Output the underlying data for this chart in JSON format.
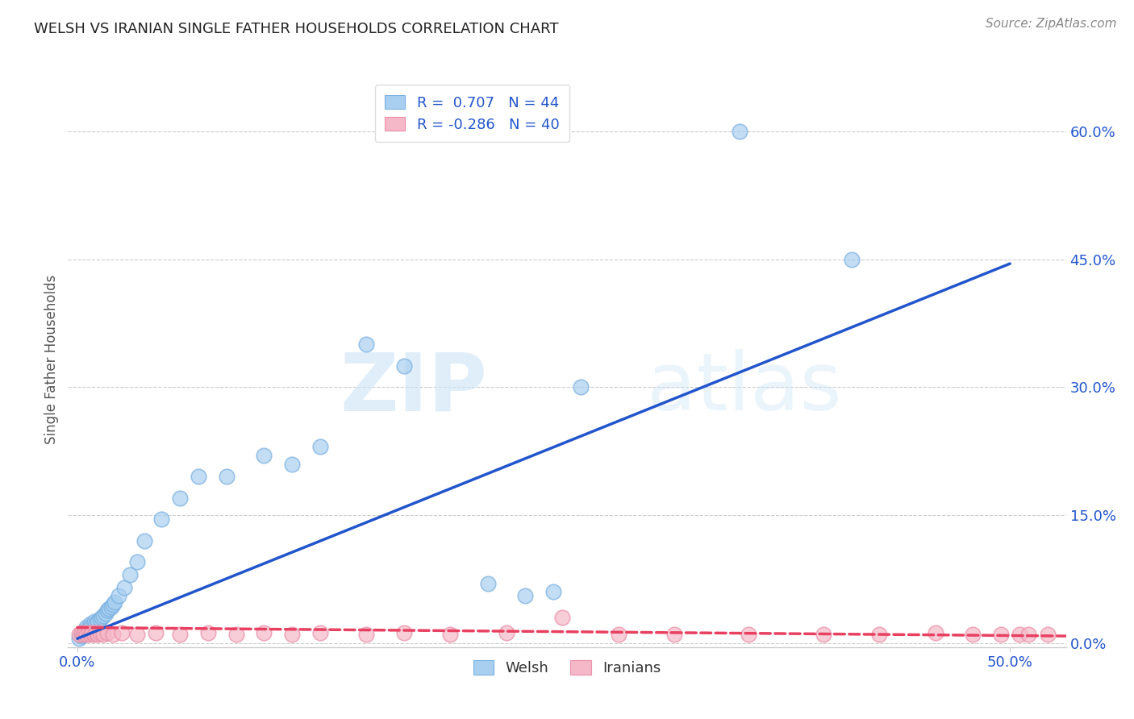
{
  "title": "WELSH VS IRANIAN SINGLE FATHER HOUSEHOLDS CORRELATION CHART",
  "source": "Source: ZipAtlas.com",
  "ylabel": "Single Father Households",
  "ytick_labels": [
    "0.0%",
    "15.0%",
    "30.0%",
    "45.0%",
    "60.0%"
  ],
  "ytick_values": [
    0.0,
    0.15,
    0.3,
    0.45,
    0.6
  ],
  "xtick_labels": [
    "0.0%",
    "50.0%"
  ],
  "xtick_values": [
    0.0,
    0.5
  ],
  "xlim": [
    -0.005,
    0.53
  ],
  "ylim": [
    -0.005,
    0.67
  ],
  "welsh_color": "#a8cff0",
  "welsh_edge_color": "#7ab0e0",
  "welsh_line_color": "#2255cc",
  "iranian_color": "#f5b8c8",
  "iranian_edge_color": "#e890a8",
  "iranian_line_color": "#e84060",
  "legend_welsh_label": "Welsh",
  "legend_iranian_label": "Iranians",
  "welsh_R": "0.707",
  "welsh_N": "44",
  "iranian_R": "-0.286",
  "iranian_N": "40",
  "watermark_zip": "ZIP",
  "watermark_atlas": "atlas",
  "welsh_x": [
    0.001,
    0.002,
    0.003,
    0.003,
    0.004,
    0.004,
    0.005,
    0.005,
    0.006,
    0.007,
    0.007,
    0.008,
    0.009,
    0.01,
    0.011,
    0.012,
    0.013,
    0.014,
    0.015,
    0.016,
    0.017,
    0.018,
    0.019,
    0.02,
    0.022,
    0.025,
    0.028,
    0.032,
    0.036,
    0.045,
    0.055,
    0.065,
    0.08,
    0.1,
    0.115,
    0.13,
    0.155,
    0.175,
    0.22,
    0.24,
    0.255,
    0.27,
    0.355,
    0.415
  ],
  "welsh_y": [
    0.005,
    0.008,
    0.01,
    0.012,
    0.01,
    0.015,
    0.012,
    0.018,
    0.015,
    0.018,
    0.022,
    0.02,
    0.025,
    0.022,
    0.025,
    0.028,
    0.03,
    0.032,
    0.035,
    0.038,
    0.04,
    0.042,
    0.045,
    0.048,
    0.055,
    0.065,
    0.08,
    0.095,
    0.12,
    0.145,
    0.17,
    0.195,
    0.195,
    0.22,
    0.21,
    0.23,
    0.35,
    0.325,
    0.07,
    0.055,
    0.06,
    0.3,
    0.6,
    0.45
  ],
  "iranian_x": [
    0.001,
    0.002,
    0.003,
    0.004,
    0.005,
    0.006,
    0.007,
    0.008,
    0.009,
    0.01,
    0.011,
    0.012,
    0.014,
    0.016,
    0.019,
    0.024,
    0.032,
    0.042,
    0.055,
    0.07,
    0.085,
    0.1,
    0.115,
    0.13,
    0.155,
    0.175,
    0.2,
    0.23,
    0.26,
    0.29,
    0.32,
    0.36,
    0.4,
    0.43,
    0.46,
    0.48,
    0.495,
    0.505,
    0.51,
    0.52
  ],
  "iranian_y": [
    0.01,
    0.012,
    0.01,
    0.012,
    0.01,
    0.012,
    0.01,
    0.012,
    0.01,
    0.012,
    0.01,
    0.012,
    0.01,
    0.012,
    0.01,
    0.012,
    0.01,
    0.012,
    0.01,
    0.012,
    0.01,
    0.012,
    0.01,
    0.012,
    0.01,
    0.012,
    0.01,
    0.012,
    0.03,
    0.01,
    0.01,
    0.01,
    0.01,
    0.01,
    0.012,
    0.01,
    0.01,
    0.01,
    0.01,
    0.01
  ],
  "welsh_trend_x": [
    0.0,
    0.5
  ],
  "welsh_trend_y": [
    0.005,
    0.445
  ],
  "iranian_trend_x": [
    0.0,
    0.53
  ],
  "iranian_trend_y": [
    0.018,
    0.008
  ],
  "grid_color": "#cccccc",
  "spine_color": "#cccccc",
  "tick_color": "#2255cc",
  "title_color": "#222222",
  "source_color": "#888888"
}
